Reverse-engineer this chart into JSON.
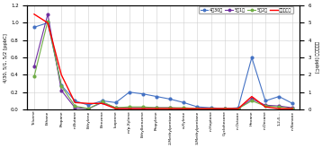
{
  "categories": [
    "Toluene",
    "Ethane",
    "Propane",
    "n-Butane",
    "Ethylene",
    "Benzene",
    "Isoprene",
    "m/p-Xylene",
    "Ethylbenzene",
    "Propylene",
    "2-Methylpentane",
    "o-Xylene",
    "3-Methylpentane",
    "n-Heptane",
    "Cyclohexane",
    "n-Octane",
    "Hexane",
    "n-Decane",
    "1,2,4-...",
    "n-Nonane"
  ],
  "series": {
    "4월30일": [
      0.95,
      1.0,
      0.28,
      0.1,
      0.05,
      0.1,
      0.08,
      0.2,
      0.18,
      0.15,
      0.12,
      0.08,
      0.03,
      0.02,
      0.01,
      0.02,
      0.6,
      0.1,
      0.15,
      0.07
    ],
    "5월1일": [
      0.5,
      1.1,
      0.22,
      0.02,
      0.01,
      0.08,
      0.02,
      0.02,
      0.02,
      0.02,
      0.02,
      0.01,
      0.01,
      0.01,
      0.01,
      0.01,
      0.12,
      0.05,
      0.04,
      0.02
    ],
    "5월2일": [
      0.38,
      1.02,
      0.27,
      0.04,
      0.01,
      0.09,
      0.02,
      0.03,
      0.03,
      0.02,
      0.02,
      0.02,
      0.01,
      0.01,
      0.01,
      0.01,
      0.1,
      0.04,
      0.03,
      0.01
    ],
    "석유리터형": [
      5.5,
      5.0,
      2.0,
      0.4,
      0.35,
      0.35,
      0.05,
      0.05,
      0.05,
      0.05,
      0.05,
      0.05,
      0.05,
      0.05,
      0.05,
      0.05,
      0.75,
      0.15,
      0.05,
      0.05
    ]
  },
  "colors": {
    "4월30일": "#4472C4",
    "5월1일": "#7030A0",
    "5월2일": "#70AD47",
    "석유리터형": "#FF0000"
  },
  "markers": {
    "4월30일": "o",
    "5월1일": "o",
    "5월2일": "o",
    "석유리터형": "None"
  },
  "ylabel_left": "4/30, 5/1, 5/2 [ppbC]",
  "ylabel_right": "석유리터형 [ppbC]",
  "ylim_left": [
    0.0,
    1.2
  ],
  "ylim_right": [
    0.0,
    6.0
  ],
  "yticks_left": [
    0.0,
    0.2,
    0.4,
    0.6,
    0.8,
    1.0,
    1.2
  ],
  "yticks_right": [
    0,
    1,
    2,
    3,
    4,
    5,
    6
  ],
  "background_color": "#ffffff",
  "grid_color": "#d0d0d0"
}
